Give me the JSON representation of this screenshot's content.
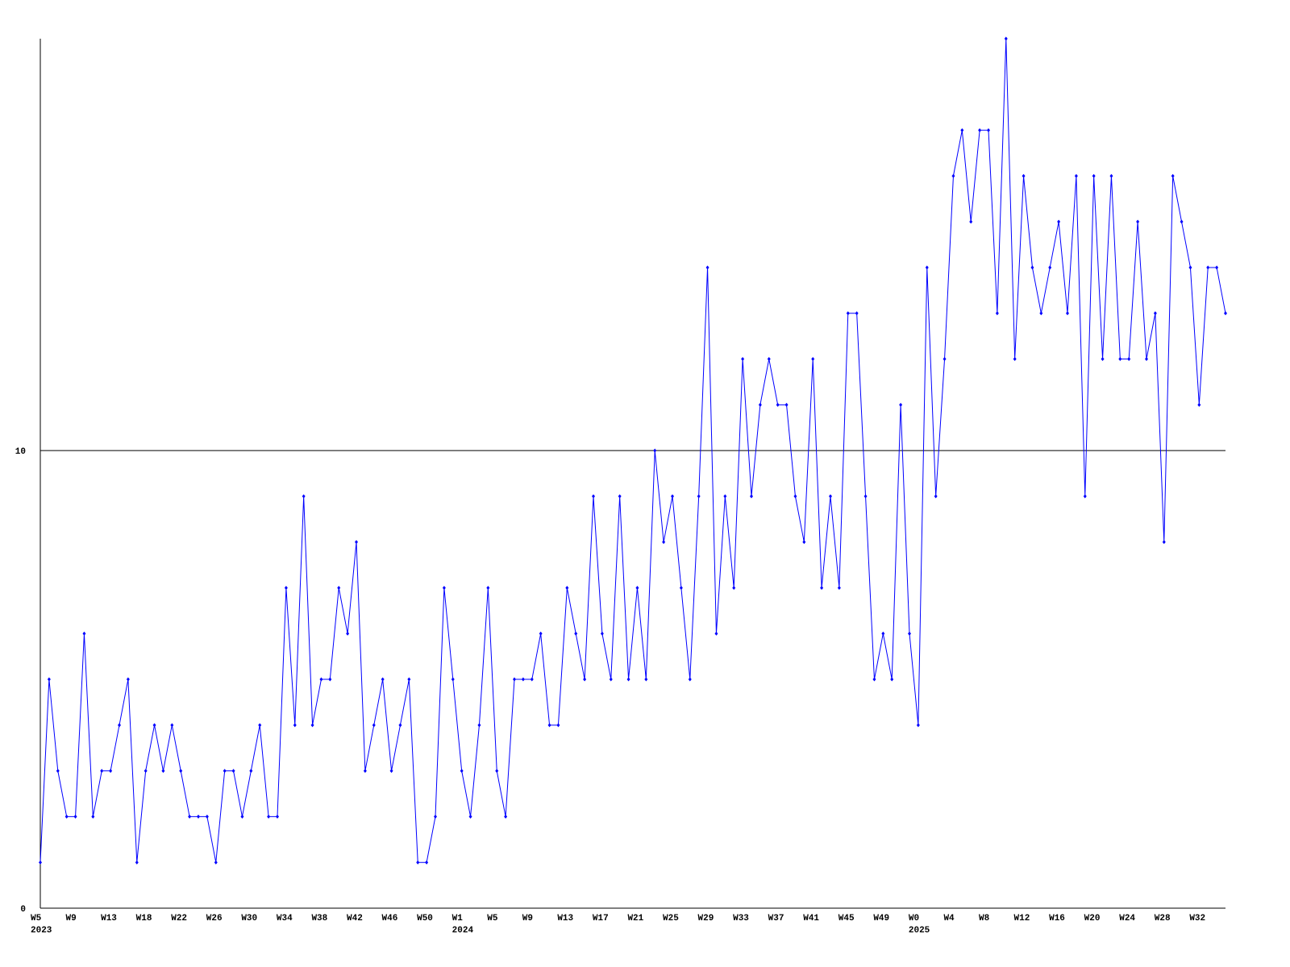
{
  "chart_data": {
    "type": "line",
    "categories": [
      "W5",
      null,
      null,
      null,
      "W9",
      null,
      null,
      null,
      "W13",
      null,
      null,
      null,
      "W18",
      null,
      null,
      null,
      "W22",
      null,
      null,
      null,
      "W26",
      null,
      null,
      null,
      "W30",
      null,
      null,
      null,
      "W34",
      null,
      null,
      null,
      "W38",
      null,
      null,
      null,
      "W42",
      null,
      null,
      null,
      "W46",
      null,
      null,
      null,
      "W50",
      null,
      null,
      null,
      "W1",
      null,
      null,
      null,
      "W5",
      null,
      null,
      null,
      "W9",
      null,
      null,
      null,
      "W13",
      null,
      null,
      null,
      "W17",
      null,
      null,
      null,
      "W21",
      null,
      null,
      null,
      "W25",
      null,
      null,
      null,
      "W29",
      null,
      null,
      null,
      "W33",
      null,
      null,
      null,
      "W37",
      null,
      null,
      null,
      "W41",
      null,
      null,
      null,
      "W45",
      null,
      null,
      null,
      "W49",
      null,
      null,
      null,
      "W0",
      null,
      null,
      null,
      "W4",
      null,
      null,
      null,
      "W8",
      null,
      null,
      null,
      "W12",
      null,
      null,
      null,
      "W16",
      null,
      null,
      null,
      "W20",
      null,
      null,
      null,
      "W24",
      null,
      null,
      null,
      "W28",
      null,
      null,
      null,
      "W32",
      null,
      null,
      null
    ],
    "years": [
      "2023",
      null,
      null,
      null,
      null,
      null,
      null,
      null,
      null,
      null,
      null,
      null,
      null,
      null,
      null,
      null,
      null,
      null,
      null,
      null,
      null,
      null,
      null,
      null,
      null,
      null,
      null,
      null,
      null,
      null,
      null,
      null,
      null,
      null,
      null,
      null,
      null,
      null,
      null,
      null,
      null,
      null,
      null,
      null,
      null,
      null,
      null,
      null,
      "2024",
      null,
      null,
      null,
      null,
      null,
      null,
      null,
      null,
      null,
      null,
      null,
      null,
      null,
      null,
      null,
      null,
      null,
      null,
      null,
      null,
      null,
      null,
      null,
      null,
      null,
      null,
      null,
      null,
      null,
      null,
      null,
      null,
      null,
      null,
      null,
      null,
      null,
      null,
      null,
      null,
      null,
      null,
      null,
      null,
      null,
      null,
      null,
      null,
      null,
      null,
      null,
      "2025",
      null,
      null,
      null,
      null,
      null,
      null,
      null,
      null,
      null,
      null,
      null,
      null,
      null,
      null,
      null,
      null,
      null,
      null,
      null,
      null,
      null,
      null,
      null,
      null,
      null,
      null,
      null,
      null,
      null,
      null,
      null,
      null,
      null,
      null,
      null
    ],
    "series": [
      {
        "color": "#0000ff",
        "values": [
          1,
          5,
          3,
          2,
          2,
          6,
          2,
          3,
          3,
          4,
          5,
          1,
          3,
          4,
          3,
          4,
          3,
          2,
          2,
          2,
          1,
          3,
          3,
          2,
          3,
          4,
          2,
          2,
          7,
          4,
          9,
          4,
          5,
          5,
          7,
          6,
          8,
          3,
          4,
          5,
          3,
          4,
          5,
          1,
          1,
          2,
          7,
          5,
          3,
          2,
          4,
          7,
          3,
          2,
          5,
          5,
          5,
          6,
          4,
          4,
          7,
          6,
          5,
          9,
          6,
          5,
          9,
          5,
          7,
          5,
          10,
          8,
          9,
          7,
          5,
          9,
          14,
          6,
          9,
          7,
          12,
          9,
          11,
          12,
          11,
          11,
          9,
          8,
          12,
          7,
          9,
          7,
          13,
          13,
          9,
          5,
          6,
          5,
          11,
          6,
          4,
          14,
          9,
          12,
          16,
          17,
          15,
          17,
          17,
          13,
          19,
          12,
          16,
          14,
          13,
          14,
          15,
          13,
          16,
          9,
          16,
          12,
          16,
          12,
          12,
          15,
          12,
          13,
          8,
          16,
          15,
          14,
          11,
          14,
          14,
          13
        ]
      }
    ],
    "ylim": [
      0,
      19
    ],
    "yticks": [
      0,
      10
    ],
    "grid": true
  }
}
